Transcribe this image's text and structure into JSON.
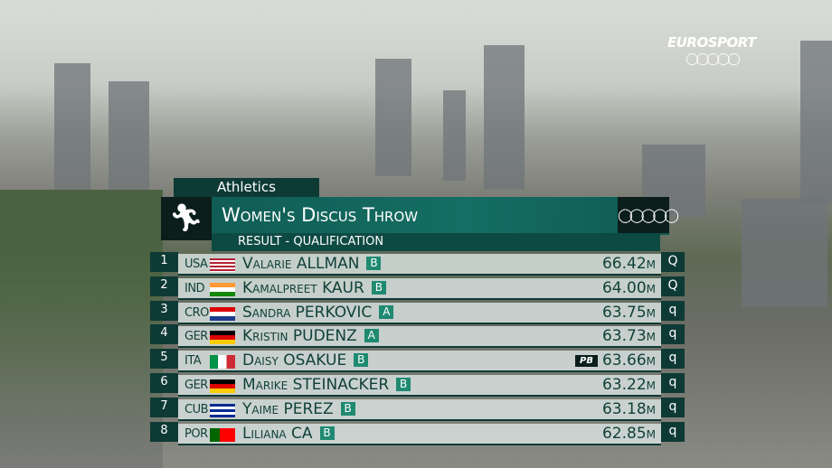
{
  "broadcaster": "EUROSPORT",
  "sport": "Athletics",
  "event_title": "Women's Discus Throw",
  "subtitle": "RESULT - QUALIFICATION",
  "accent_color": "#0f5a52",
  "results": [
    {
      "rank": "1",
      "noc": "USA",
      "flag": "usa",
      "name": "Valarie ALLMAN",
      "group": "B",
      "result": "66.42m",
      "pb": "",
      "qual": "Q"
    },
    {
      "rank": "2",
      "noc": "IND",
      "flag": "ind",
      "name": "Kamalpreet KAUR",
      "group": "B",
      "result": "64.00m",
      "pb": "",
      "qual": "Q"
    },
    {
      "rank": "3",
      "noc": "CRO",
      "flag": "cro",
      "name": "Sandra PERKOVIC",
      "group": "A",
      "result": "63.75m",
      "pb": "",
      "qual": "q"
    },
    {
      "rank": "4",
      "noc": "GER",
      "flag": "ger",
      "name": "Kristin PUDENZ",
      "group": "A",
      "result": "63.73m",
      "pb": "",
      "qual": "q"
    },
    {
      "rank": "5",
      "noc": "ITA",
      "flag": "ita",
      "name": "Daisy OSAKUE",
      "group": "B",
      "result": "63.66m",
      "pb": "PB",
      "qual": "q"
    },
    {
      "rank": "6",
      "noc": "GER",
      "flag": "ger",
      "name": "Marike STEINACKER",
      "group": "B",
      "result": "63.22m",
      "pb": "",
      "qual": "q"
    },
    {
      "rank": "7",
      "noc": "CUB",
      "flag": "cub",
      "name": "Yaime PEREZ",
      "group": "B",
      "result": "63.18m",
      "pb": "",
      "qual": "q"
    },
    {
      "rank": "8",
      "noc": "POR",
      "flag": "por",
      "name": "Liliana CA",
      "group": "B",
      "result": "62.85m",
      "pb": "",
      "qual": "q"
    }
  ]
}
